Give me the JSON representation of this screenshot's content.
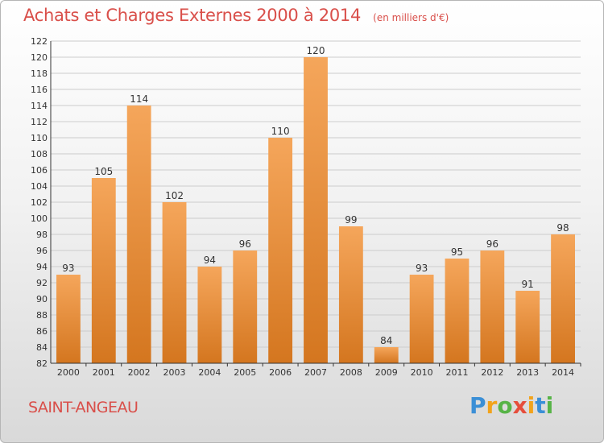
{
  "header": {
    "title": "Achats et Charges Externes 2000 à 2014",
    "unit": "(en milliers d'€)"
  },
  "footer": {
    "place": "SAINT-ANGEAU",
    "brand": "Proxiti"
  },
  "colors": {
    "title": "#d94f4a",
    "bar_light": "#f5a65b",
    "bar_dark": "#d4761f",
    "grid": "#cccccc"
  },
  "chart_data": {
    "type": "bar",
    "categories": [
      "2000",
      "2001",
      "2002",
      "2003",
      "2004",
      "2005",
      "2006",
      "2007",
      "2008",
      "2009",
      "2010",
      "2011",
      "2012",
      "2013",
      "2014"
    ],
    "values": [
      93,
      105,
      114,
      102,
      94,
      96,
      110,
      120,
      99,
      84,
      93,
      95,
      96,
      91,
      98
    ],
    "ylim": [
      82,
      122
    ],
    "yticks": [
      82,
      84,
      86,
      88,
      90,
      92,
      94,
      96,
      98,
      100,
      102,
      104,
      106,
      108,
      110,
      112,
      114,
      116,
      118,
      120,
      122
    ],
    "grid": true,
    "data_labels": true
  }
}
